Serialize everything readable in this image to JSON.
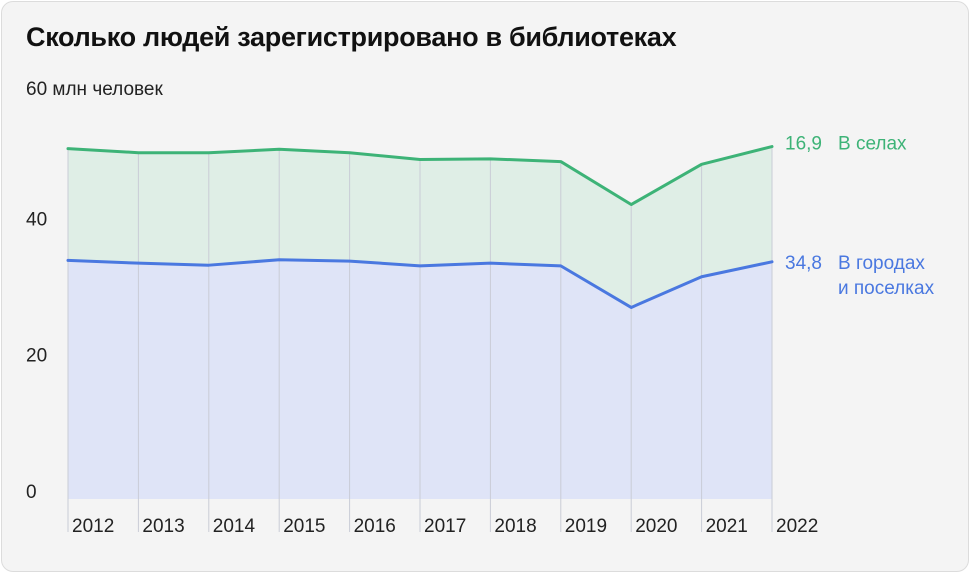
{
  "title": "Сколько людей зарегистрировано в библиотеках",
  "unit_label": "60 млн человек",
  "colors": {
    "rural_line": "#3db377",
    "rural_fill": "#dfeee6",
    "urban_line": "#4a78e0",
    "urban_fill": "#dfe4f7",
    "grid": "#c9ccd6",
    "text": "#222222",
    "card_bg": "#f4f4f4"
  },
  "chart_data": {
    "type": "area",
    "stacked": true,
    "title": "Сколько людей зарегистрировано в библиотеках",
    "ylabel": "60 млн человек",
    "ylim": [
      0,
      60
    ],
    "y_ticks": [
      "0",
      "20",
      "40"
    ],
    "categories": [
      "2012",
      "2013",
      "2014",
      "2015",
      "2016",
      "2017",
      "2018",
      "2019",
      "2020",
      "2021",
      "2022"
    ],
    "series": [
      {
        "name": "В городах и поселках",
        "values": [
          35.0,
          34.6,
          34.3,
          35.1,
          34.9,
          34.2,
          34.6,
          34.2,
          28.1,
          32.6,
          34.8
        ],
        "end_value_label": "34,8",
        "label_lines": [
          "В городах",
          "и поселках"
        ]
      },
      {
        "name": "В селах",
        "values": [
          16.4,
          16.2,
          16.5,
          16.2,
          15.9,
          15.6,
          15.3,
          15.3,
          15.1,
          16.5,
          16.9
        ],
        "end_value_label": "16,9",
        "label_lines": [
          "В селах"
        ]
      }
    ],
    "grid": "vertical",
    "legend": "right-end-labels"
  }
}
